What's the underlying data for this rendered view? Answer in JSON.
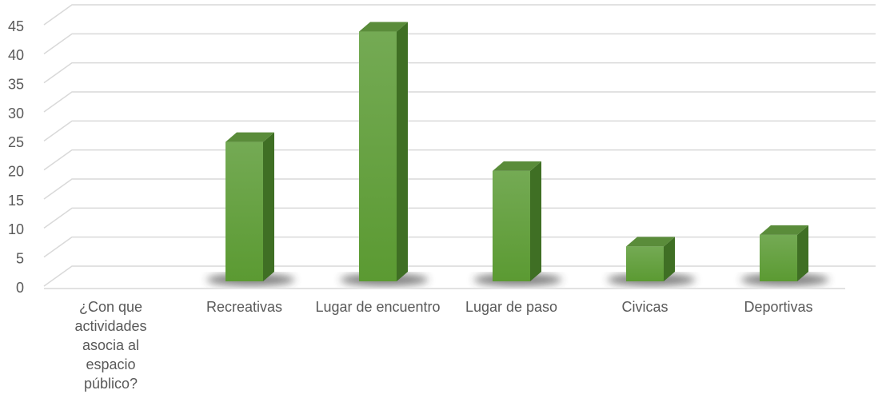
{
  "chart_data": {
    "type": "bar3d",
    "categories": [
      "¿Con que actividades asocia al espacio público?",
      "Recreativas",
      "Lugar de encuentro",
      "Lugar de paso",
      "Civicas",
      "Deportivas"
    ],
    "values": [
      null,
      24,
      43,
      19,
      6,
      8
    ],
    "color": "#64a23e",
    "ylim": [
      0,
      45
    ],
    "yticks": [
      0,
      5,
      10,
      15,
      20,
      25,
      30,
      35,
      40,
      45
    ],
    "grid": true
  }
}
